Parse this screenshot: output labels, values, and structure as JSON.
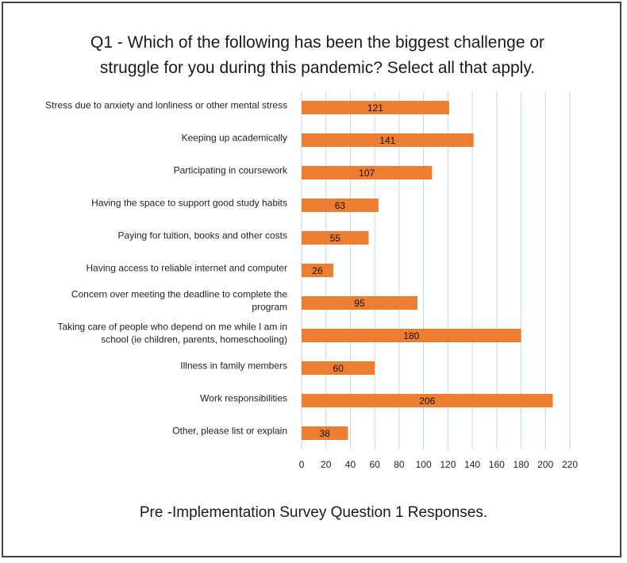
{
  "caption": "Pre -Implementation Survey Question 1 Responses.",
  "chart_data": {
    "type": "bar",
    "orientation": "horizontal",
    "title_lines": [
      "Q1 - Which of the following has been the biggest challenge or",
      "struggle for you during this pandemic? Select all that apply."
    ],
    "categories": [
      [
        "Stress due to anxiety and lonliness or other mental stress"
      ],
      [
        "Keeping up academically"
      ],
      [
        "Participating in coursework"
      ],
      [
        "Having the space to support good study habits"
      ],
      [
        "Paying for tuition, books and other costs"
      ],
      [
        "Having access to reliable internet and computer"
      ],
      [
        "Concern over meeting the deadline to complete the",
        "program"
      ],
      [
        "Taking care of people who depend on me while I am in",
        "school (ie children, parents, homeschooling)"
      ],
      [
        "Illness in family members"
      ],
      [
        "Work responsibilities"
      ],
      [
        "Other, please list or explain"
      ]
    ],
    "values": [
      121,
      141,
      107,
      63,
      55,
      26,
      95,
      180,
      60,
      206,
      38
    ],
    "xlim": [
      0,
      220
    ],
    "xticks": [
      0,
      20,
      40,
      60,
      80,
      100,
      120,
      140,
      160,
      180,
      200,
      220
    ],
    "grid": true,
    "legend": "none",
    "bar_color": "#ED7D31",
    "grid_color": "#BDD7EE"
  }
}
